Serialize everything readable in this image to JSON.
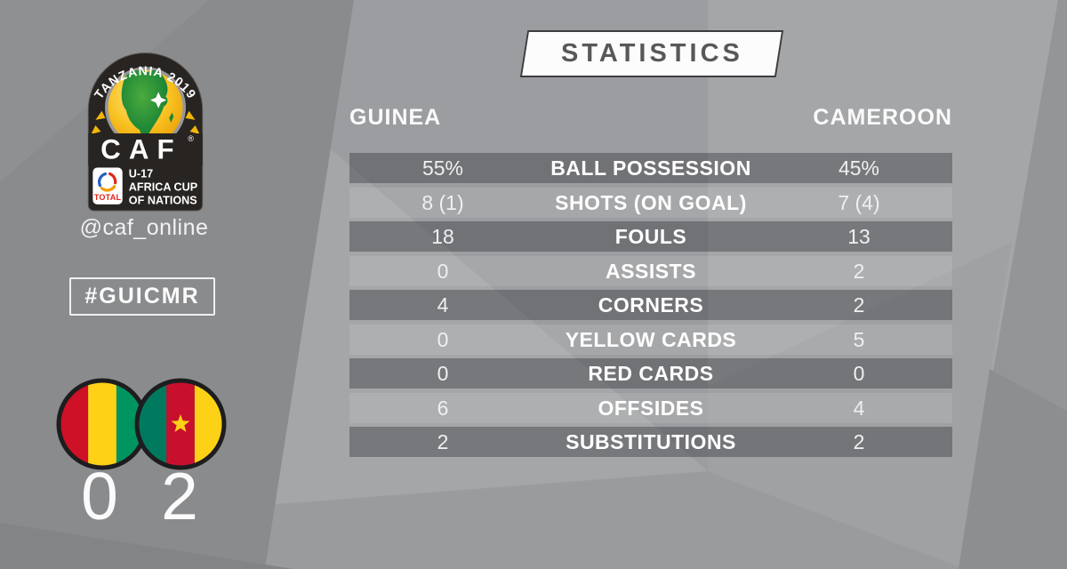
{
  "header": {
    "title": "STATISTICS"
  },
  "logo": {
    "arc_text": "TANZANIA 2019",
    "org": "CAF",
    "registered_mark": "®",
    "sponsor": "TOTAL",
    "competition_line1": "U-17",
    "competition_line2": "AFRICA CUP",
    "competition_line3": "OF NATIONS"
  },
  "social": {
    "handle": "@caf_online",
    "hashtag": "#GUICMR"
  },
  "match": {
    "home_team": "GUINEA",
    "away_team": "CAMEROON",
    "home_score": "0",
    "away_score": "2"
  },
  "stats": {
    "rows": [
      {
        "label": "BALL POSSESSION",
        "home": "55%",
        "away": "45%"
      },
      {
        "label": "SHOTS (ON GOAL)",
        "home": "8 (1)",
        "away": "7 (4)"
      },
      {
        "label": "FOULS",
        "home": "18",
        "away": "13"
      },
      {
        "label": "ASSISTS",
        "home": "0",
        "away": "2"
      },
      {
        "label": "CORNERS",
        "home": "4",
        "away": "2"
      },
      {
        "label": "YELLOW CARDS",
        "home": "0",
        "away": "5"
      },
      {
        "label": "RED CARDS",
        "home": "0",
        "away": "0"
      },
      {
        "label": "OFFSIDES",
        "home": "6",
        "away": "4"
      },
      {
        "label": "SUBSTITUTIONS",
        "home": "2",
        "away": "2"
      }
    ]
  },
  "colors": {
    "statistics_text": "#57585a",
    "row_dark": "rgba(28,28,34,0.33)",
    "row_light": "rgba(255,255,255,0.10)",
    "guinea_red": "#ce1126",
    "guinea_yellow": "#fcd116",
    "guinea_green": "#009460",
    "cameroon_green": "#007a5e",
    "cameroon_red": "#c8102e",
    "cameroon_yellow": "#fcd116",
    "total_red": "#e1251b",
    "badge_dark": "#272422",
    "ball_gold": "#f8c222",
    "africa_green": "#1e8c3c"
  },
  "chart_data": {
    "type": "table",
    "title": "STATISTICS",
    "columns": [
      "GUINEA",
      "CAMEROON"
    ],
    "rows": [
      {
        "label": "BALL POSSESSION",
        "GUINEA": "55%",
        "CAMEROON": "45%"
      },
      {
        "label": "SHOTS (ON GOAL)",
        "GUINEA": "8 (1)",
        "CAMEROON": "7 (4)"
      },
      {
        "label": "FOULS",
        "GUINEA": 18,
        "CAMEROON": 13
      },
      {
        "label": "ASSISTS",
        "GUINEA": 0,
        "CAMEROON": 2
      },
      {
        "label": "CORNERS",
        "GUINEA": 4,
        "CAMEROON": 2
      },
      {
        "label": "YELLOW CARDS",
        "GUINEA": 0,
        "CAMEROON": 5
      },
      {
        "label": "RED CARDS",
        "GUINEA": 0,
        "CAMEROON": 0
      },
      {
        "label": "OFFSIDES",
        "GUINEA": 6,
        "CAMEROON": 4
      },
      {
        "label": "SUBSTITUTIONS",
        "GUINEA": 2,
        "CAMEROON": 2
      }
    ],
    "score": {
      "GUINEA": 0,
      "CAMEROON": 2
    }
  }
}
